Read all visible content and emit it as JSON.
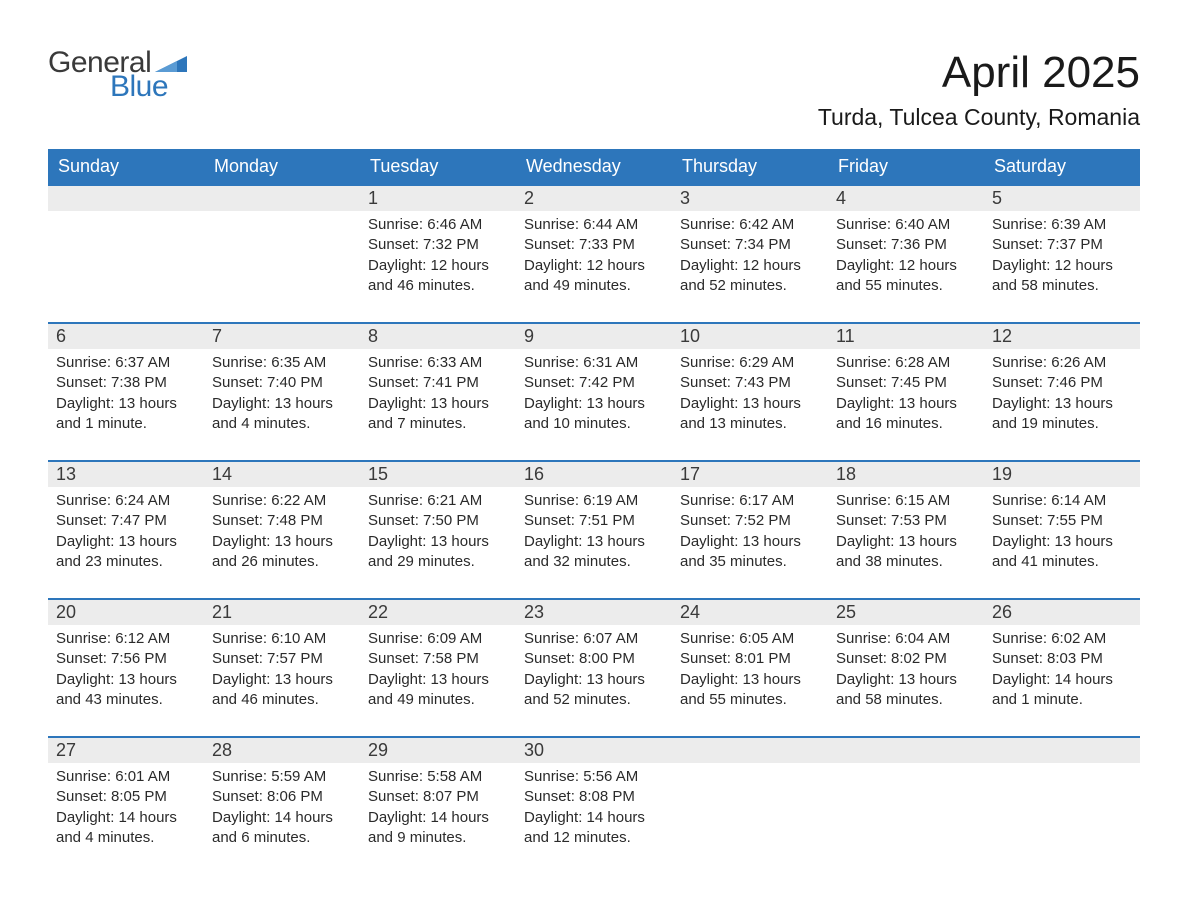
{
  "brand": {
    "word1": "General",
    "word2": "Blue",
    "word1_color": "#3a3a3a",
    "word2_color": "#2d76bb",
    "flag_color": "#2d76bb"
  },
  "header": {
    "title": "April 2025",
    "location": "Turda, Tulcea County, Romania"
  },
  "colors": {
    "header_bg": "#2d76bb",
    "header_text": "#ffffff",
    "daynum_bg": "#ececec",
    "row_border": "#2d76bb",
    "body_text": "#2a2a2a",
    "page_bg": "#ffffff"
  },
  "typography": {
    "title_fontsize": 44,
    "location_fontsize": 23,
    "weekday_fontsize": 18,
    "daynum_fontsize": 18,
    "body_fontsize": 15
  },
  "calendar": {
    "type": "table",
    "columns": [
      "Sunday",
      "Monday",
      "Tuesday",
      "Wednesday",
      "Thursday",
      "Friday",
      "Saturday"
    ],
    "weeks": [
      [
        null,
        null,
        {
          "day": "1",
          "sunrise": "Sunrise: 6:46 AM",
          "sunset": "Sunset: 7:32 PM",
          "daylight": "Daylight: 12 hours and 46 minutes."
        },
        {
          "day": "2",
          "sunrise": "Sunrise: 6:44 AM",
          "sunset": "Sunset: 7:33 PM",
          "daylight": "Daylight: 12 hours and 49 minutes."
        },
        {
          "day": "3",
          "sunrise": "Sunrise: 6:42 AM",
          "sunset": "Sunset: 7:34 PM",
          "daylight": "Daylight: 12 hours and 52 minutes."
        },
        {
          "day": "4",
          "sunrise": "Sunrise: 6:40 AM",
          "sunset": "Sunset: 7:36 PM",
          "daylight": "Daylight: 12 hours and 55 minutes."
        },
        {
          "day": "5",
          "sunrise": "Sunrise: 6:39 AM",
          "sunset": "Sunset: 7:37 PM",
          "daylight": "Daylight: 12 hours and 58 minutes."
        }
      ],
      [
        {
          "day": "6",
          "sunrise": "Sunrise: 6:37 AM",
          "sunset": "Sunset: 7:38 PM",
          "daylight": "Daylight: 13 hours and 1 minute."
        },
        {
          "day": "7",
          "sunrise": "Sunrise: 6:35 AM",
          "sunset": "Sunset: 7:40 PM",
          "daylight": "Daylight: 13 hours and 4 minutes."
        },
        {
          "day": "8",
          "sunrise": "Sunrise: 6:33 AM",
          "sunset": "Sunset: 7:41 PM",
          "daylight": "Daylight: 13 hours and 7 minutes."
        },
        {
          "day": "9",
          "sunrise": "Sunrise: 6:31 AM",
          "sunset": "Sunset: 7:42 PM",
          "daylight": "Daylight: 13 hours and 10 minutes."
        },
        {
          "day": "10",
          "sunrise": "Sunrise: 6:29 AM",
          "sunset": "Sunset: 7:43 PM",
          "daylight": "Daylight: 13 hours and 13 minutes."
        },
        {
          "day": "11",
          "sunrise": "Sunrise: 6:28 AM",
          "sunset": "Sunset: 7:45 PM",
          "daylight": "Daylight: 13 hours and 16 minutes."
        },
        {
          "day": "12",
          "sunrise": "Sunrise: 6:26 AM",
          "sunset": "Sunset: 7:46 PM",
          "daylight": "Daylight: 13 hours and 19 minutes."
        }
      ],
      [
        {
          "day": "13",
          "sunrise": "Sunrise: 6:24 AM",
          "sunset": "Sunset: 7:47 PM",
          "daylight": "Daylight: 13 hours and 23 minutes."
        },
        {
          "day": "14",
          "sunrise": "Sunrise: 6:22 AM",
          "sunset": "Sunset: 7:48 PM",
          "daylight": "Daylight: 13 hours and 26 minutes."
        },
        {
          "day": "15",
          "sunrise": "Sunrise: 6:21 AM",
          "sunset": "Sunset: 7:50 PM",
          "daylight": "Daylight: 13 hours and 29 minutes."
        },
        {
          "day": "16",
          "sunrise": "Sunrise: 6:19 AM",
          "sunset": "Sunset: 7:51 PM",
          "daylight": "Daylight: 13 hours and 32 minutes."
        },
        {
          "day": "17",
          "sunrise": "Sunrise: 6:17 AM",
          "sunset": "Sunset: 7:52 PM",
          "daylight": "Daylight: 13 hours and 35 minutes."
        },
        {
          "day": "18",
          "sunrise": "Sunrise: 6:15 AM",
          "sunset": "Sunset: 7:53 PM",
          "daylight": "Daylight: 13 hours and 38 minutes."
        },
        {
          "day": "19",
          "sunrise": "Sunrise: 6:14 AM",
          "sunset": "Sunset: 7:55 PM",
          "daylight": "Daylight: 13 hours and 41 minutes."
        }
      ],
      [
        {
          "day": "20",
          "sunrise": "Sunrise: 6:12 AM",
          "sunset": "Sunset: 7:56 PM",
          "daylight": "Daylight: 13 hours and 43 minutes."
        },
        {
          "day": "21",
          "sunrise": "Sunrise: 6:10 AM",
          "sunset": "Sunset: 7:57 PM",
          "daylight": "Daylight: 13 hours and 46 minutes."
        },
        {
          "day": "22",
          "sunrise": "Sunrise: 6:09 AM",
          "sunset": "Sunset: 7:58 PM",
          "daylight": "Daylight: 13 hours and 49 minutes."
        },
        {
          "day": "23",
          "sunrise": "Sunrise: 6:07 AM",
          "sunset": "Sunset: 8:00 PM",
          "daylight": "Daylight: 13 hours and 52 minutes."
        },
        {
          "day": "24",
          "sunrise": "Sunrise: 6:05 AM",
          "sunset": "Sunset: 8:01 PM",
          "daylight": "Daylight: 13 hours and 55 minutes."
        },
        {
          "day": "25",
          "sunrise": "Sunrise: 6:04 AM",
          "sunset": "Sunset: 8:02 PM",
          "daylight": "Daylight: 13 hours and 58 minutes."
        },
        {
          "day": "26",
          "sunrise": "Sunrise: 6:02 AM",
          "sunset": "Sunset: 8:03 PM",
          "daylight": "Daylight: 14 hours and 1 minute."
        }
      ],
      [
        {
          "day": "27",
          "sunrise": "Sunrise: 6:01 AM",
          "sunset": "Sunset: 8:05 PM",
          "daylight": "Daylight: 14 hours and 4 minutes."
        },
        {
          "day": "28",
          "sunrise": "Sunrise: 5:59 AM",
          "sunset": "Sunset: 8:06 PM",
          "daylight": "Daylight: 14 hours and 6 minutes."
        },
        {
          "day": "29",
          "sunrise": "Sunrise: 5:58 AM",
          "sunset": "Sunset: 8:07 PM",
          "daylight": "Daylight: 14 hours and 9 minutes."
        },
        {
          "day": "30",
          "sunrise": "Sunrise: 5:56 AM",
          "sunset": "Sunset: 8:08 PM",
          "daylight": "Daylight: 14 hours and 12 minutes."
        },
        null,
        null,
        null
      ]
    ]
  }
}
